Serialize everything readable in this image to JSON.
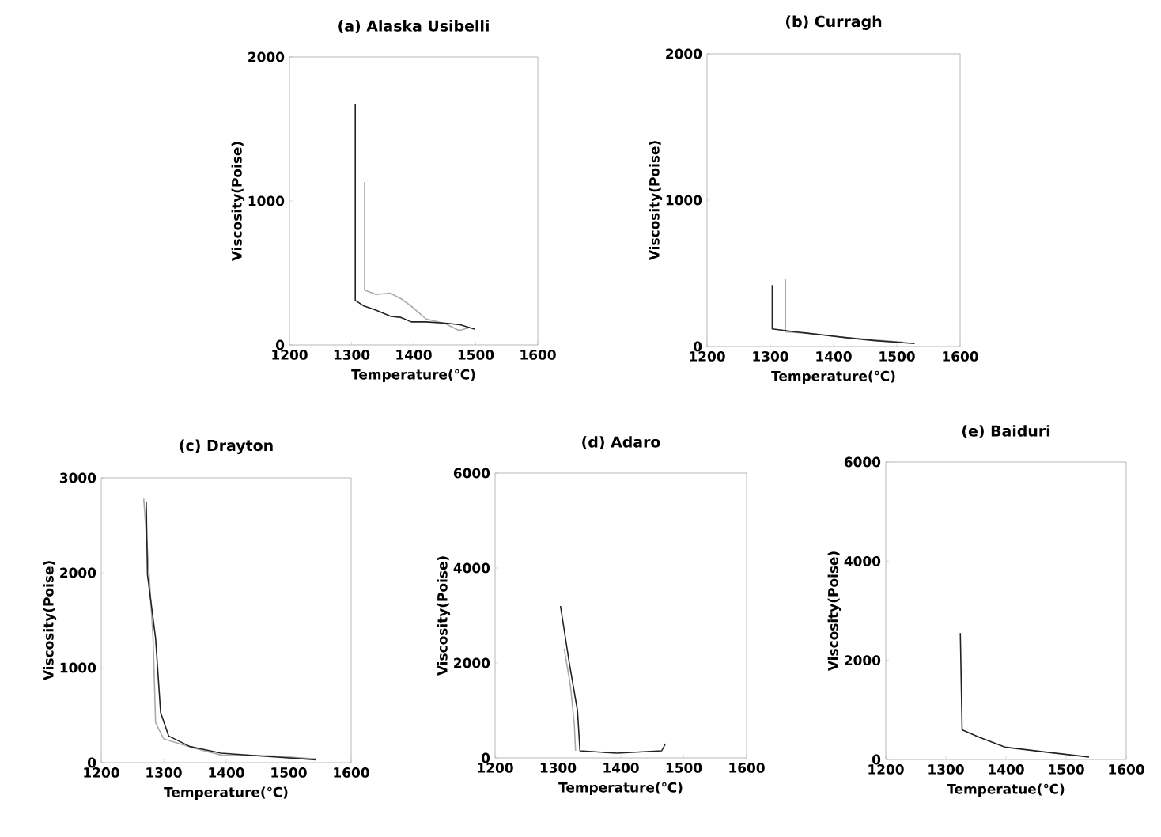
{
  "chart_data": [
    {
      "type": "line",
      "title": "(a) Alaska Usibelli",
      "xlabel": "Temperature(℃)",
      "ylabel": "Viscosity(Poise)",
      "xlim": [
        1200,
        1600
      ],
      "ylim": [
        0,
        2000
      ],
      "xticks": [
        1200,
        1300,
        1400,
        1500,
        1600
      ],
      "yticks": [
        0,
        1000,
        2000
      ],
      "series": [
        {
          "color": "#aaaaaa",
          "x": [
            1321,
            1321,
            1340,
            1362,
            1380,
            1396,
            1420,
            1450,
            1473,
            1490
          ],
          "values": [
            1130,
            380,
            350,
            360,
            320,
            270,
            180,
            150,
            100,
            120
          ]
        },
        {
          "color": "#222222",
          "x": [
            1306,
            1306,
            1320,
            1340,
            1362,
            1380,
            1396,
            1420,
            1455,
            1475,
            1498
          ],
          "values": [
            1670,
            310,
            270,
            240,
            200,
            190,
            160,
            160,
            150,
            140,
            110
          ]
        }
      ]
    },
    {
      "type": "line",
      "title": "(b) Curragh",
      "xlabel": "Temperature(℃)",
      "ylabel": "Viscosity(Poise)",
      "xlim": [
        1200,
        1600
      ],
      "ylim": [
        0,
        2000
      ],
      "xticks": [
        1200,
        1300,
        1400,
        1500,
        1600
      ],
      "yticks": [
        0,
        1000,
        2000
      ],
      "series": [
        {
          "color": "#aaaaaa",
          "x": [
            1324,
            1324,
            1360,
            1400,
            1450,
            1510
          ],
          "values": [
            460,
            100,
            90,
            70,
            50,
            30
          ]
        },
        {
          "color": "#222222",
          "x": [
            1303,
            1303,
            1340,
            1382,
            1420,
            1466,
            1528
          ],
          "values": [
            420,
            120,
            100,
            80,
            60,
            40,
            20
          ]
        }
      ]
    },
    {
      "type": "line",
      "title": "(c) Drayton",
      "xlabel": "Temperature(℃)",
      "ylabel": "Viscosity(Poise)",
      "xlim": [
        1200,
        1600
      ],
      "ylim": [
        0,
        3000
      ],
      "xticks": [
        1200,
        1300,
        1400,
        1500,
        1600
      ],
      "yticks": [
        0,
        1000,
        2000,
        3000
      ],
      "series": [
        {
          "color": "#aaaaaa",
          "x": [
            1268,
            1276,
            1283,
            1287,
            1300,
            1350,
            1392,
            1477,
            1544
          ],
          "values": [
            2780,
            2050,
            1310,
            420,
            250,
            150,
            80,
            70,
            40
          ]
        },
        {
          "color": "#222222",
          "x": [
            1272,
            1274,
            1287,
            1295,
            1308,
            1342,
            1392,
            1477,
            1544
          ],
          "values": [
            2750,
            1980,
            1310,
            530,
            280,
            170,
            100,
            60,
            30
          ]
        }
      ]
    },
    {
      "type": "line",
      "title": "(d) Adaro",
      "xlabel": "Temperature(℃)",
      "ylabel": "Viscosity(Poise)",
      "xlim": [
        1200,
        1600
      ],
      "ylim": [
        0,
        6000
      ],
      "xticks": [
        1200,
        1300,
        1400,
        1500,
        1600
      ],
      "yticks": [
        0,
        2000,
        4000,
        6000
      ],
      "series": [
        {
          "color": "#aaaaaa",
          "x": [
            1310,
            1320,
            1326,
            1328
          ],
          "values": [
            2300,
            1500,
            700,
            150
          ]
        },
        {
          "color": "#222222",
          "x": [
            1304,
            1318,
            1331,
            1335,
            1394,
            1465,
            1471
          ],
          "values": [
            3200,
            2000,
            1000,
            150,
            100,
            150,
            300
          ]
        }
      ]
    },
    {
      "type": "line",
      "title": "(e) Baiduri",
      "xlabel": "Temperatue(℃)",
      "ylabel": "Viscosity(Poise)",
      "xlim": [
        1200,
        1600
      ],
      "ylim": [
        0,
        6000
      ],
      "xticks": [
        1200,
        1300,
        1400,
        1500,
        1600
      ],
      "yticks": [
        0,
        2000,
        4000,
        6000
      ],
      "series": [
        {
          "color": "#222222",
          "x": [
            1324,
            1327,
            1355,
            1398,
            1466,
            1538
          ],
          "values": [
            2550,
            600,
            450,
            250,
            150,
            50
          ]
        }
      ]
    }
  ]
}
